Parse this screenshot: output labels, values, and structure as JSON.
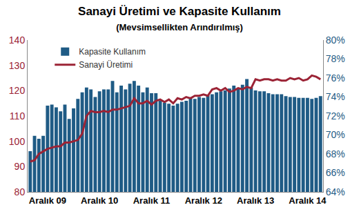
{
  "chart_data": {
    "type": "bar",
    "title": "Sanayi Üretimi ve Kapasite Kullanım",
    "subtitle": "(Mevsimsellikten Arındırılmış)",
    "categories": [
      null,
      null,
      null,
      null,
      "Aralık 09",
      null,
      null,
      null,
      null,
      null,
      null,
      null,
      null,
      null,
      null,
      null,
      "Aralık 10",
      null,
      null,
      null,
      null,
      null,
      null,
      null,
      null,
      null,
      null,
      null,
      "Aralık 11",
      null,
      null,
      null,
      null,
      null,
      null,
      null,
      null,
      null,
      null,
      null,
      "Aralık 12",
      null,
      null,
      null,
      null,
      null,
      null,
      null,
      null,
      null,
      null,
      null,
      "Aralık 13",
      null,
      null,
      null,
      null,
      null,
      null,
      null,
      null,
      null,
      null,
      null,
      "Aralık 14",
      null,
      null,
      null
    ],
    "series": [
      {
        "name": "Kapasite Kullanım",
        "type": "bar",
        "axis": "y2",
        "color": "#1f5b85",
        "values": [
          68.3,
          69.9,
          69.6,
          69.9,
          73.1,
          73.2,
          72.9,
          72.5,
          73.2,
          71.7,
          72.8,
          73.8,
          74.5,
          75.0,
          74.8,
          74.0,
          74.6,
          74.8,
          74.8,
          75.7,
          74.5,
          75.2,
          74.8,
          75.4,
          75.7,
          75.2,
          74.5,
          75.0,
          74.4,
          74.4,
          73.6,
          73.4,
          73.3,
          73.1,
          73.3,
          73.5,
          73.6,
          73.9,
          73.8,
          74.0,
          73.9,
          74.2,
          74.3,
          74.5,
          74.6,
          74.7,
          74.9,
          75.2,
          74.9,
          75.3,
          75.9,
          75.0,
          74.7,
          74.6,
          74.6,
          74.4,
          74.3,
          74.3,
          74.3,
          74.1,
          74.0,
          74.0,
          73.9,
          73.9,
          73.9,
          73.8,
          73.9,
          74.1
        ]
      },
      {
        "name": "Sanayi Üretimi",
        "type": "line",
        "color": "#9b2335",
        "values": [
          92,
          92.5,
          95,
          96,
          97,
          97.5,
          98,
          98,
          99.5,
          99.5,
          100,
          100.5,
          103,
          110,
          112,
          111.5,
          111.5,
          112,
          111.5,
          112.5,
          112.5,
          113,
          113.5,
          114,
          117,
          115,
          115,
          116,
          114.5,
          116,
          116.5,
          115.5,
          116.5,
          115,
          117,
          116.5,
          117.5,
          117,
          118,
          118,
          118.5,
          118,
          120.5,
          121,
          120,
          121,
          119.5,
          120,
          121,
          120.5,
          121.5,
          121,
          124.5,
          124,
          124.5,
          124.5,
          124,
          124.5,
          124,
          124,
          125,
          124.5,
          125,
          124,
          124.5,
          126,
          125.5,
          124.5
        ]
      }
    ],
    "ylim": [
      80,
      140
    ],
    "yticks": [
      80,
      90,
      100,
      110,
      120,
      130,
      140
    ],
    "y2lim": [
      64,
      80
    ],
    "y2ticks": [
      {
        "value": 64,
        "label": "64%"
      },
      {
        "value": 66,
        "label": "66%"
      },
      {
        "value": 68,
        "label": "68%"
      },
      {
        "value": 70,
        "label": "70%"
      },
      {
        "value": 72,
        "label": "72%"
      },
      {
        "value": 74,
        "label": "74%"
      },
      {
        "value": 76,
        "label": "76%"
      },
      {
        "value": 78,
        "label": "78%"
      },
      {
        "value": 80,
        "label": "80%"
      }
    ],
    "grid": false,
    "legend": "top left"
  }
}
